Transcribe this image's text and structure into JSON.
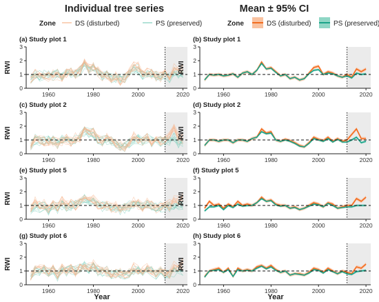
{
  "figure": {
    "col_titles": [
      "Individual tree series",
      "Mean ± 95% CI"
    ],
    "legend_zone_label": "Zone",
    "legend_entries": [
      "DS (disturbed)",
      "PS (preserved)"
    ],
    "xlabel": "Year",
    "ylabel": "RWI"
  },
  "colors": {
    "ds": "#f26c1f",
    "ps": "#1aa389",
    "ds_fill": "#f9c2a0",
    "ps_fill": "#8fd6c5",
    "ds_light": "#f6b48c",
    "ps_light": "#7fcfbd",
    "shade": "#ebebeb"
  },
  "chart_data": [
    {
      "type": "line",
      "panel": "(a) Study plot 1",
      "mode": "individual",
      "xlim": [
        1950,
        2022
      ],
      "ylim": [
        0,
        3
      ],
      "xticks": [
        1960,
        1980,
        2000,
        2020
      ],
      "yticks": [
        0,
        1,
        2,
        3
      ],
      "x": [
        1952,
        1954,
        1956,
        1958,
        1960,
        1962,
        1964,
        1966,
        1968,
        1970,
        1972,
        1974,
        1976,
        1978,
        1980,
        1982,
        1984,
        1986,
        1988,
        1990,
        1992,
        1994,
        1996,
        1998,
        2000,
        2002,
        2004,
        2006,
        2008,
        2010,
        2012,
        2014,
        2016,
        2018,
        2020
      ],
      "reference_line_y": 1,
      "event_line_x": 2012,
      "shaded_region_x": [
        2012,
        2022
      ],
      "series": [
        {
          "name": "DS (disturbed)",
          "values": [
            0.6,
            1.0,
            0.95,
            1.0,
            0.9,
            0.95,
            1.05,
            0.8,
            1.1,
            1.2,
            1.0,
            1.3,
            1.9,
            1.4,
            1.5,
            1.2,
            0.9,
            1.0,
            0.7,
            0.8,
            0.6,
            0.7,
            1.1,
            1.5,
            1.6,
            1.0,
            1.2,
            1.1,
            0.9,
            0.8,
            1.0,
            0.8,
            1.4,
            1.2,
            1.4
          ]
        },
        {
          "name": "PS (preserved)",
          "values": [
            0.6,
            1.0,
            0.95,
            1.0,
            0.9,
            0.95,
            1.05,
            0.8,
            1.1,
            1.2,
            1.0,
            1.3,
            1.8,
            1.4,
            1.45,
            1.15,
            0.9,
            1.0,
            0.7,
            0.8,
            0.6,
            0.7,
            1.05,
            1.3,
            1.35,
            1.0,
            1.1,
            1.05,
            0.9,
            0.8,
            0.9,
            0.75,
            1.1,
            1.0,
            1.05
          ]
        }
      ]
    },
    {
      "type": "line",
      "panel": "(b) Study plot 1",
      "mode": "mean_ci",
      "xlim": [
        1950,
        2022
      ],
      "ylim": [
        0,
        3
      ],
      "xticks": [
        1960,
        1980,
        2000,
        2020
      ],
      "yticks": [
        0,
        1,
        2,
        3
      ],
      "x": [
        1952,
        1954,
        1956,
        1958,
        1960,
        1962,
        1964,
        1966,
        1968,
        1970,
        1972,
        1974,
        1976,
        1978,
        1980,
        1982,
        1984,
        1986,
        1988,
        1990,
        1992,
        1994,
        1996,
        1998,
        2000,
        2002,
        2004,
        2006,
        2008,
        2010,
        2012,
        2014,
        2016,
        2018,
        2020
      ],
      "reference_line_y": 1,
      "event_line_x": 2012,
      "shaded_region_x": [
        2012,
        2022
      ],
      "series": [
        {
          "name": "DS (disturbed)",
          "values": [
            0.6,
            1.0,
            0.95,
            1.0,
            0.9,
            0.95,
            1.05,
            0.8,
            1.1,
            1.2,
            1.0,
            1.3,
            1.9,
            1.4,
            1.5,
            1.2,
            0.9,
            1.0,
            0.7,
            0.8,
            0.6,
            0.7,
            1.1,
            1.5,
            1.6,
            1.0,
            1.2,
            1.1,
            0.9,
            0.8,
            1.0,
            0.8,
            1.4,
            1.2,
            1.4
          ]
        },
        {
          "name": "PS (preserved)",
          "values": [
            0.6,
            1.0,
            0.95,
            1.0,
            0.9,
            0.95,
            1.05,
            0.8,
            1.1,
            1.2,
            1.0,
            1.3,
            1.8,
            1.4,
            1.45,
            1.15,
            0.9,
            1.0,
            0.7,
            0.8,
            0.6,
            0.7,
            1.05,
            1.3,
            1.35,
            1.0,
            1.1,
            1.05,
            0.9,
            0.8,
            0.9,
            0.75,
            1.1,
            1.0,
            1.05
          ]
        }
      ]
    },
    {
      "type": "line",
      "panel": "(c) Study plot 2",
      "mode": "individual",
      "xlim": [
        1950,
        2022
      ],
      "ylim": [
        0,
        3
      ],
      "xticks": [
        1960,
        1980,
        2000,
        2020
      ],
      "yticks": [
        0,
        1,
        2,
        3
      ],
      "x": [
        1952,
        1954,
        1956,
        1958,
        1960,
        1962,
        1964,
        1966,
        1968,
        1970,
        1972,
        1974,
        1976,
        1978,
        1980,
        1982,
        1984,
        1986,
        1988,
        1990,
        1992,
        1994,
        1996,
        1998,
        2000,
        2002,
        2004,
        2006,
        2008,
        2010,
        2012,
        2014,
        2016,
        2018,
        2020
      ],
      "reference_line_y": 1,
      "event_line_x": 2012,
      "shaded_region_x": [
        2012,
        2022
      ],
      "series": [
        {
          "name": "DS (disturbed)",
          "values": [
            0.6,
            1.0,
            1.0,
            0.9,
            1.0,
            1.0,
            0.8,
            1.0,
            1.0,
            0.9,
            1.1,
            1.2,
            1.8,
            1.5,
            1.6,
            1.0,
            0.9,
            1.05,
            0.95,
            0.8,
            0.6,
            0.5,
            0.8,
            1.2,
            1.05,
            0.95,
            1.2,
            0.9,
            1.1,
            0.9,
            1.0,
            1.4,
            1.8,
            1.1,
            1.1
          ]
        },
        {
          "name": "PS (preserved)",
          "values": [
            0.6,
            1.0,
            1.0,
            0.9,
            1.0,
            1.0,
            0.8,
            1.0,
            1.0,
            0.9,
            1.1,
            1.2,
            1.6,
            1.45,
            1.5,
            1.0,
            0.9,
            1.0,
            0.9,
            0.75,
            0.55,
            0.5,
            0.75,
            1.1,
            1.0,
            0.9,
            1.1,
            0.85,
            1.05,
            0.85,
            0.85,
            1.0,
            1.2,
            0.8,
            0.9
          ]
        }
      ]
    },
    {
      "type": "line",
      "panel": "(d) Study plot 2",
      "mode": "mean_ci",
      "xlim": [
        1950,
        2022
      ],
      "ylim": [
        0,
        3
      ],
      "xticks": [
        1960,
        1980,
        2000,
        2020
      ],
      "yticks": [
        0,
        1,
        2,
        3
      ],
      "x": [
        1952,
        1954,
        1956,
        1958,
        1960,
        1962,
        1964,
        1966,
        1968,
        1970,
        1972,
        1974,
        1976,
        1978,
        1980,
        1982,
        1984,
        1986,
        1988,
        1990,
        1992,
        1994,
        1996,
        1998,
        2000,
        2002,
        2004,
        2006,
        2008,
        2010,
        2012,
        2014,
        2016,
        2018,
        2020
      ],
      "reference_line_y": 1,
      "event_line_x": 2012,
      "shaded_region_x": [
        2012,
        2022
      ],
      "series": [
        {
          "name": "DS (disturbed)",
          "values": [
            0.6,
            1.0,
            1.0,
            0.9,
            1.0,
            1.0,
            0.8,
            1.0,
            1.0,
            0.9,
            1.1,
            1.2,
            1.8,
            1.5,
            1.6,
            1.0,
            0.9,
            1.05,
            0.95,
            0.8,
            0.6,
            0.5,
            0.8,
            1.2,
            1.05,
            0.95,
            1.2,
            0.9,
            1.1,
            0.9,
            1.0,
            1.4,
            1.8,
            1.1,
            1.1
          ]
        },
        {
          "name": "PS (preserved)",
          "values": [
            0.6,
            1.0,
            1.0,
            0.9,
            1.0,
            1.0,
            0.8,
            1.0,
            1.0,
            0.9,
            1.1,
            1.2,
            1.6,
            1.45,
            1.5,
            1.0,
            0.9,
            1.0,
            0.9,
            0.75,
            0.55,
            0.5,
            0.75,
            1.1,
            1.0,
            0.9,
            1.1,
            0.85,
            1.05,
            0.85,
            0.85,
            1.0,
            1.2,
            0.8,
            0.9
          ]
        }
      ]
    },
    {
      "type": "line",
      "panel": "(e) Study plot 5",
      "mode": "individual",
      "xlim": [
        1950,
        2022
      ],
      "ylim": [
        0,
        3
      ],
      "xticks": [
        1960,
        1980,
        2000,
        2020
      ],
      "yticks": [
        0,
        1,
        2,
        3
      ],
      "x": [
        1952,
        1954,
        1956,
        1958,
        1960,
        1962,
        1964,
        1966,
        1968,
        1970,
        1972,
        1974,
        1976,
        1978,
        1980,
        1982,
        1984,
        1986,
        1988,
        1990,
        1992,
        1994,
        1996,
        1998,
        2000,
        2002,
        2004,
        2006,
        2008,
        2010,
        2012,
        2014,
        2016,
        2018,
        2020
      ],
      "reference_line_y": 1,
      "event_line_x": 2012,
      "shaded_region_x": [
        2012,
        2022
      ],
      "series": [
        {
          "name": "DS (disturbed)",
          "values": [
            0.8,
            1.3,
            1.0,
            1.1,
            0.8,
            1.1,
            0.9,
            1.3,
            1.0,
            1.1,
            1.0,
            1.2,
            1.6,
            1.3,
            1.4,
            1.1,
            1.0,
            1.0,
            0.8,
            0.9,
            0.7,
            0.8,
            1.0,
            1.2,
            1.1,
            0.9,
            1.2,
            1.1,
            0.8,
            0.9,
            1.0,
            1.0,
            1.5,
            1.3,
            1.6
          ]
        },
        {
          "name": "PS (preserved)",
          "values": [
            0.6,
            0.9,
            0.9,
            1.0,
            0.7,
            1.0,
            0.85,
            1.1,
            0.95,
            1.0,
            1.0,
            1.2,
            1.5,
            1.3,
            1.35,
            1.05,
            0.95,
            1.0,
            0.8,
            0.85,
            0.7,
            0.8,
            0.95,
            1.1,
            1.05,
            0.9,
            1.15,
            1.0,
            0.8,
            0.85,
            0.9,
            0.9,
            1.0,
            1.0,
            1.0
          ]
        }
      ]
    },
    {
      "type": "line",
      "panel": "(f) Study plot 5",
      "mode": "mean_ci",
      "xlim": [
        1950,
        2022
      ],
      "ylim": [
        0,
        3
      ],
      "xticks": [
        1960,
        1980,
        2000,
        2020
      ],
      "yticks": [
        0,
        1,
        2,
        3
      ],
      "x": [
        1952,
        1954,
        1956,
        1958,
        1960,
        1962,
        1964,
        1966,
        1968,
        1970,
        1972,
        1974,
        1976,
        1978,
        1980,
        1982,
        1984,
        1986,
        1988,
        1990,
        1992,
        1994,
        1996,
        1998,
        2000,
        2002,
        2004,
        2006,
        2008,
        2010,
        2012,
        2014,
        2016,
        2018,
        2020
      ],
      "reference_line_y": 1,
      "event_line_x": 2012,
      "shaded_region_x": [
        2012,
        2022
      ],
      "series": [
        {
          "name": "DS (disturbed)",
          "values": [
            0.8,
            1.3,
            1.0,
            1.1,
            0.8,
            1.1,
            0.9,
            1.3,
            1.0,
            1.1,
            1.0,
            1.2,
            1.6,
            1.3,
            1.4,
            1.1,
            1.0,
            1.0,
            0.8,
            0.9,
            0.7,
            0.8,
            1.0,
            1.2,
            1.1,
            0.9,
            1.2,
            1.1,
            0.8,
            0.9,
            1.0,
            1.0,
            1.5,
            1.3,
            1.6
          ]
        },
        {
          "name": "PS (preserved)",
          "values": [
            0.6,
            0.9,
            0.9,
            1.0,
            0.7,
            1.0,
            0.85,
            1.1,
            0.95,
            1.0,
            1.0,
            1.2,
            1.5,
            1.3,
            1.35,
            1.05,
            0.95,
            1.0,
            0.8,
            0.85,
            0.7,
            0.8,
            0.95,
            1.1,
            1.05,
            0.9,
            1.15,
            1.0,
            0.8,
            0.85,
            0.9,
            0.9,
            1.0,
            1.0,
            1.0
          ]
        }
      ]
    },
    {
      "type": "line",
      "panel": "(g) Study plot 6",
      "mode": "individual",
      "xlim": [
        1950,
        2022
      ],
      "ylim": [
        0,
        3
      ],
      "xticks": [
        1960,
        1980,
        2000,
        2020
      ],
      "yticks": [
        0,
        1,
        2,
        3
      ],
      "x": [
        1952,
        1954,
        1956,
        1958,
        1960,
        1962,
        1964,
        1966,
        1968,
        1970,
        1972,
        1974,
        1976,
        1978,
        1980,
        1982,
        1984,
        1986,
        1988,
        1990,
        1992,
        1994,
        1996,
        1998,
        2000,
        2002,
        2004,
        2006,
        2008,
        2010,
        2012,
        2014,
        2016,
        2018,
        2020
      ],
      "reference_line_y": 1,
      "event_line_x": 2012,
      "shaded_region_x": [
        2012,
        2022
      ],
      "series": [
        {
          "name": "DS (disturbed)",
          "values": [
            0.6,
            1.0,
            1.1,
            1.2,
            0.9,
            1.2,
            0.6,
            1.2,
            1.0,
            1.1,
            1.0,
            1.3,
            1.4,
            1.2,
            1.4,
            1.1,
            0.9,
            1.0,
            0.7,
            0.8,
            0.8,
            0.7,
            0.9,
            1.2,
            1.1,
            0.9,
            1.2,
            1.0,
            0.8,
            1.0,
            0.9,
            0.8,
            1.3,
            1.2,
            1.5
          ]
        },
        {
          "name": "PS (preserved)",
          "values": [
            0.55,
            1.0,
            1.05,
            1.1,
            0.9,
            1.1,
            0.6,
            1.1,
            1.0,
            1.05,
            1.0,
            1.2,
            1.35,
            1.15,
            1.3,
            1.05,
            0.9,
            1.0,
            0.7,
            0.8,
            0.75,
            0.7,
            0.85,
            1.1,
            1.05,
            0.85,
            1.1,
            0.95,
            0.8,
            0.95,
            0.8,
            0.75,
            0.95,
            1.0,
            1.05
          ]
        }
      ]
    },
    {
      "type": "line",
      "panel": "(h) Study plot 6",
      "mode": "mean_ci",
      "xlim": [
        1950,
        2022
      ],
      "ylim": [
        0,
        3
      ],
      "xticks": [
        1960,
        1980,
        2000,
        2020
      ],
      "yticks": [
        0,
        1,
        2,
        3
      ],
      "x": [
        1952,
        1954,
        1956,
        1958,
        1960,
        1962,
        1964,
        1966,
        1968,
        1970,
        1972,
        1974,
        1976,
        1978,
        1980,
        1982,
        1984,
        1986,
        1988,
        1990,
        1992,
        1994,
        1996,
        1998,
        2000,
        2002,
        2004,
        2006,
        2008,
        2010,
        2012,
        2014,
        2016,
        2018,
        2020
      ],
      "reference_line_y": 1,
      "event_line_x": 2012,
      "shaded_region_x": [
        2012,
        2022
      ],
      "series": [
        {
          "name": "DS (disturbed)",
          "values": [
            0.6,
            1.0,
            1.1,
            1.2,
            0.9,
            1.2,
            0.6,
            1.2,
            1.0,
            1.1,
            1.0,
            1.3,
            1.4,
            1.2,
            1.4,
            1.1,
            0.9,
            1.0,
            0.7,
            0.8,
            0.8,
            0.7,
            0.9,
            1.2,
            1.1,
            0.9,
            1.2,
            1.0,
            0.8,
            1.0,
            0.9,
            0.8,
            1.3,
            1.2,
            1.5
          ]
        },
        {
          "name": "PS (preserved)",
          "values": [
            0.55,
            1.0,
            1.05,
            1.1,
            0.9,
            1.1,
            0.6,
            1.1,
            1.0,
            1.05,
            1.0,
            1.2,
            1.35,
            1.15,
            1.3,
            1.05,
            0.9,
            1.0,
            0.7,
            0.8,
            0.75,
            0.7,
            0.85,
            1.1,
            1.05,
            0.85,
            1.1,
            0.95,
            0.8,
            0.95,
            0.8,
            0.75,
            0.95,
            1.0,
            1.05
          ]
        }
      ]
    }
  ]
}
